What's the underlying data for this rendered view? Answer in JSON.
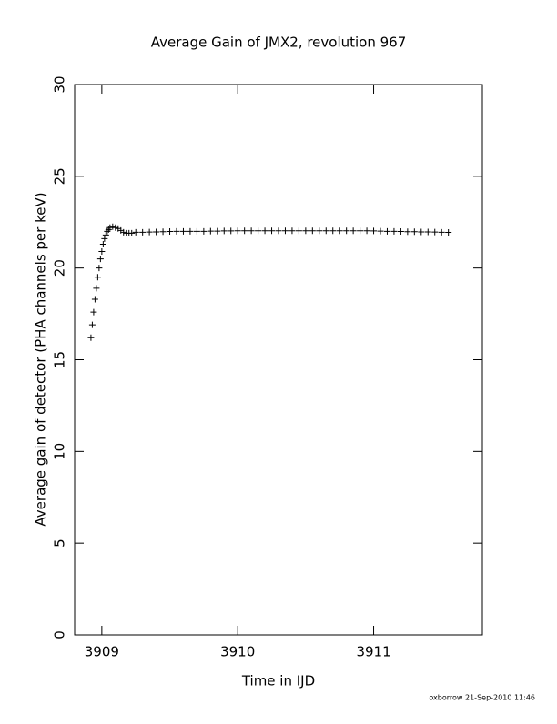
{
  "chart_data": {
    "type": "scatter",
    "title": "Average Gain of JMX2, revolution 967",
    "x_label": "Time in IJD",
    "y_label": "Average gain of detector (PHA channels per keV)",
    "footer": "oxborrow 21-Sep-2010 11:46",
    "marker": "plus",
    "color": "#000000",
    "xlim": [
      3908.8,
      3911.8
    ],
    "xticks": [
      3909,
      3910,
      3911
    ],
    "ylim": [
      0,
      30
    ],
    "yticks": [
      0,
      5,
      10,
      15,
      20,
      25,
      30
    ],
    "series": [
      {
        "name": "gain",
        "x": [
          3908.92,
          3908.93,
          3908.94,
          3908.95,
          3908.96,
          3908.97,
          3908.98,
          3908.99,
          3909.0,
          3909.01,
          3909.02,
          3909.03,
          3909.04,
          3909.05,
          3909.06,
          3909.08,
          3909.1,
          3909.12,
          3909.14,
          3909.16,
          3909.18,
          3909.2,
          3909.22,
          3909.25,
          3909.3,
          3909.35,
          3909.4,
          3909.45,
          3909.5,
          3909.55,
          3909.6,
          3909.65,
          3909.7,
          3909.75,
          3909.8,
          3909.85,
          3909.9,
          3909.95,
          3910.0,
          3910.05,
          3910.1,
          3910.15,
          3910.2,
          3910.25,
          3910.3,
          3910.35,
          3910.4,
          3910.45,
          3910.5,
          3910.55,
          3910.6,
          3910.65,
          3910.7,
          3910.75,
          3910.8,
          3910.85,
          3910.9,
          3910.95,
          3911.0,
          3911.05,
          3911.1,
          3911.15,
          3911.2,
          3911.25,
          3911.3,
          3911.35,
          3911.4,
          3911.45,
          3911.5,
          3911.55
        ],
        "values": [
          16.2,
          16.9,
          17.6,
          18.3,
          18.9,
          19.5,
          20.0,
          20.5,
          20.9,
          21.3,
          21.6,
          21.8,
          22.0,
          22.1,
          22.2,
          22.25,
          22.2,
          22.15,
          22.05,
          21.95,
          21.9,
          21.9,
          21.9,
          21.95,
          21.95,
          21.96,
          21.97,
          21.98,
          21.99,
          22.0,
          22.0,
          22.0,
          22.0,
          22.0,
          22.01,
          22.01,
          22.02,
          22.02,
          22.03,
          22.03,
          22.03,
          22.03,
          22.03,
          22.03,
          22.03,
          22.03,
          22.03,
          22.03,
          22.03,
          22.03,
          22.03,
          22.03,
          22.03,
          22.03,
          22.03,
          22.03,
          22.03,
          22.03,
          22.02,
          22.01,
          22.0,
          22.0,
          21.99,
          21.98,
          21.98,
          21.97,
          21.97,
          21.96,
          21.95,
          21.94
        ]
      }
    ]
  }
}
